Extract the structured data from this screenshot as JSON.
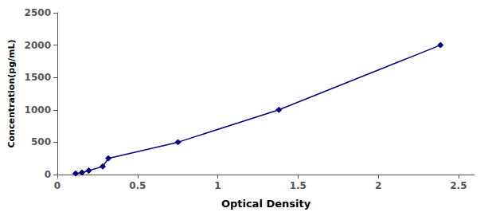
{
  "chart_data": {
    "type": "line",
    "x": [
      0.114,
      0.154,
      0.196,
      0.283,
      0.318,
      0.752,
      1.381,
      2.388
    ],
    "values": [
      15.6,
      31.2,
      62.5,
      125,
      250,
      500,
      1000,
      2000
    ],
    "color": "#00008B",
    "marker": "diamond",
    "xlabel": "Optical Density",
    "ylabel": "Concentration(pg/mL)",
    "xlim": [
      0,
      2.6
    ],
    "ylim": [
      0,
      2500
    ],
    "xticks": [
      0,
      0.5,
      1,
      1.5,
      2,
      2.5
    ],
    "yticks": [
      0,
      500,
      1000,
      1500,
      2000,
      2500
    ],
    "grid": false
  }
}
